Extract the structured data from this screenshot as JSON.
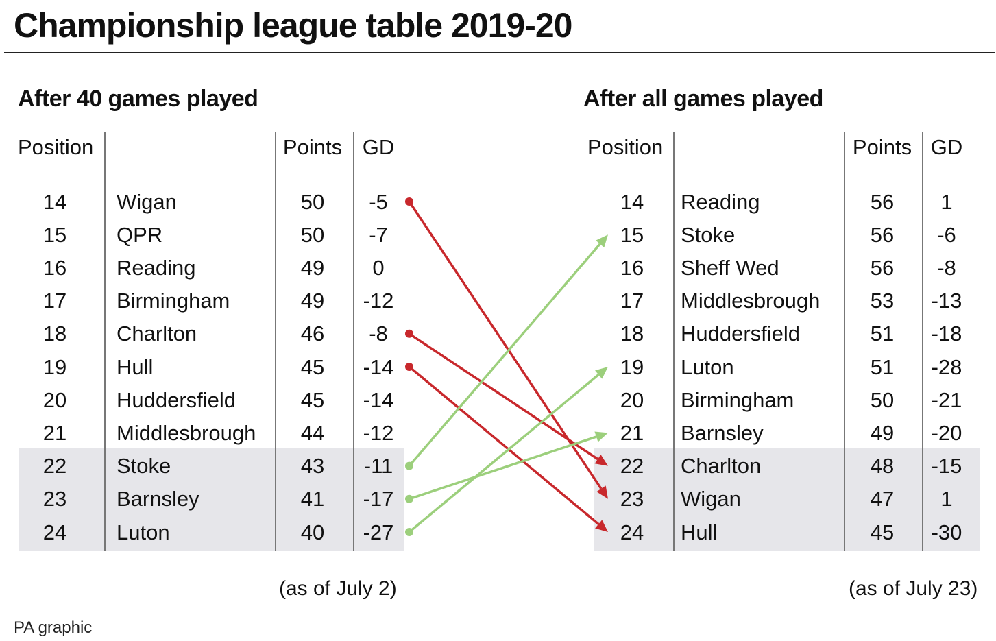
{
  "title": "Championship league table 2019-20",
  "source": "PA graphic",
  "colors": {
    "worse": "#c8282c",
    "better": "#9ccf7c",
    "band": "#e6e6ea"
  },
  "chart_data": {
    "type": "table",
    "headers": {
      "position": "Position",
      "points": "Points",
      "gd": "GD"
    },
    "left": {
      "subtitle": "After 40 games played",
      "note": "(as of July 2)",
      "rows": [
        {
          "pos": "14",
          "team": "Wigan",
          "pts": "50",
          "gd": "-5"
        },
        {
          "pos": "15",
          "team": "QPR",
          "pts": "50",
          "gd": "-7"
        },
        {
          "pos": "16",
          "team": "Reading",
          "pts": "49",
          "gd": "0"
        },
        {
          "pos": "17",
          "team": "Birmingham",
          "pts": "49",
          "gd": "-12"
        },
        {
          "pos": "18",
          "team": "Charlton",
          "pts": "46",
          "gd": "-8"
        },
        {
          "pos": "19",
          "team": "Hull",
          "pts": "45",
          "gd": "-14"
        },
        {
          "pos": "20",
          "team": "Huddersfield",
          "pts": "45",
          "gd": "-14"
        },
        {
          "pos": "21",
          "team": "Middlesbrough",
          "pts": "44",
          "gd": "-12"
        },
        {
          "pos": "22",
          "team": "Stoke",
          "pts": "43",
          "gd": "-11"
        },
        {
          "pos": "23",
          "team": "Barnsley",
          "pts": "41",
          "gd": "-17"
        },
        {
          "pos": "24",
          "team": "Luton",
          "pts": "40",
          "gd": "-27"
        }
      ]
    },
    "right": {
      "subtitle": "After all games played",
      "note": "(as of July 23)",
      "rows": [
        {
          "pos": "14",
          "team": "Reading",
          "pts": "56",
          "gd": "1"
        },
        {
          "pos": "15",
          "team": "Stoke",
          "pts": "56",
          "gd": "-6"
        },
        {
          "pos": "16",
          "team": "Sheff Wed",
          "pts": "56",
          "gd": "-8"
        },
        {
          "pos": "17",
          "team": "Middlesbrough",
          "pts": "53",
          "gd": "-13"
        },
        {
          "pos": "18",
          "team": "Huddersfield",
          "pts": "51",
          "gd": "-18"
        },
        {
          "pos": "19",
          "team": "Luton",
          "pts": "51",
          "gd": "-28"
        },
        {
          "pos": "20",
          "team": "Birmingham",
          "pts": "50",
          "gd": "-21"
        },
        {
          "pos": "21",
          "team": "Barnsley",
          "pts": "49",
          "gd": "-20"
        },
        {
          "pos": "22",
          "team": "Charlton",
          "pts": "48",
          "gd": "-15"
        },
        {
          "pos": "23",
          "team": "Wigan",
          "pts": "47",
          "gd": "1"
        },
        {
          "pos": "24",
          "team": "Hull",
          "pts": "45",
          "gd": "-30"
        }
      ]
    },
    "highlight_positions": [
      "22",
      "23",
      "24"
    ],
    "moves": [
      {
        "team": "Wigan",
        "from": 14,
        "to": 23,
        "direction": "down"
      },
      {
        "team": "Charlton",
        "from": 18,
        "to": 22,
        "direction": "down"
      },
      {
        "team": "Hull",
        "from": 19,
        "to": 24,
        "direction": "down"
      },
      {
        "team": "Stoke",
        "from": 22,
        "to": 15,
        "direction": "up"
      },
      {
        "team": "Barnsley",
        "from": 23,
        "to": 21,
        "direction": "up"
      },
      {
        "team": "Luton",
        "from": 24,
        "to": 19,
        "direction": "up"
      }
    ]
  }
}
